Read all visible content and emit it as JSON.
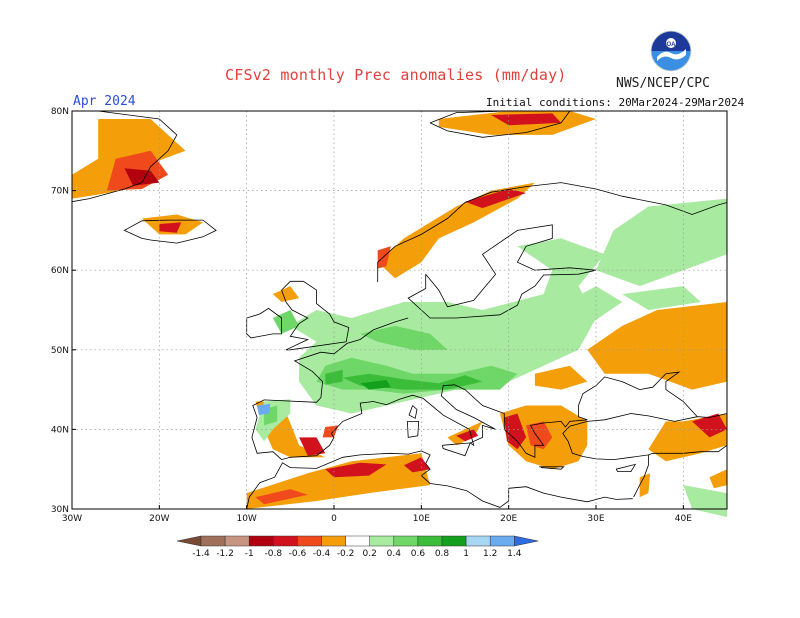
{
  "header": {
    "title": "CFSv2 monthly Prec anomalies (mm/day)",
    "agency": "NWS/NCEP/CPC",
    "logo_text": "NOAA",
    "valid_month": "Apr 2024",
    "initial_conditions": "Initial conditions: 20Mar2024-29Mar2024"
  },
  "map": {
    "lon_range": [
      -30,
      45
    ],
    "lat_range": [
      30,
      80
    ],
    "lat_labels": [
      "80N",
      "70N",
      "60N",
      "50N",
      "40N",
      "30N"
    ],
    "lon_labels": [
      "30W",
      "20W",
      "10W",
      "0",
      "10E",
      "20E",
      "30E",
      "40E"
    ],
    "grid": true
  },
  "colorbar": {
    "labels": [
      "-1.4",
      "-1.2",
      "-1",
      "-0.8",
      "-0.6",
      "-0.4",
      "-0.2",
      "0.2",
      "0.4",
      "0.6",
      "0.8",
      "1",
      "1.2",
      "1.4"
    ],
    "colors": [
      "#7a4a35",
      "#a0705a",
      "#c89482",
      "#b3000f",
      "#d1121c",
      "#f04a1c",
      "#f49e0a",
      "#ffffff",
      "#a8eaa0",
      "#6ed767",
      "#3cbd3a",
      "#14a01c",
      "#a7d6f5",
      "#6aabef",
      "#2d6be0"
    ]
  },
  "anomalies": {
    "colors": {
      "dry_light": "#f49e0a",
      "dry_mid": "#f04a1c",
      "dry_strong": "#d1121c",
      "dry_extreme": "#b3000f",
      "wet_light": "#a8eaa0",
      "wet_mid": "#6ed767",
      "wet_strong": "#3cbd3a",
      "wet_extreme": "#14a01c",
      "very_wet": "#6aabef"
    }
  }
}
